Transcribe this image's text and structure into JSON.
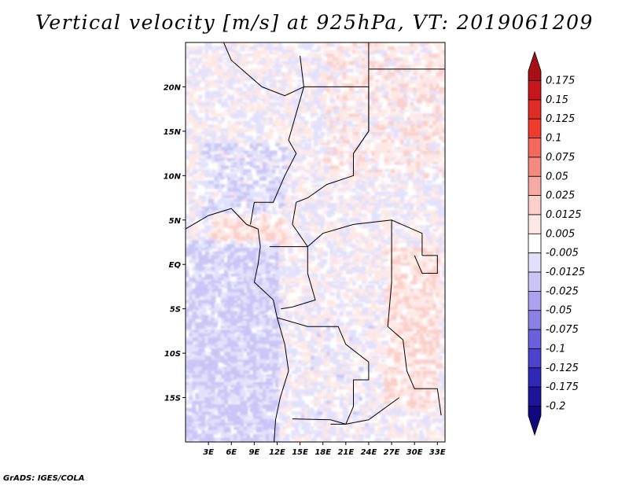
{
  "chart_data": {
    "type": "heatmap",
    "title": "Vertical velocity [m/s] at 925hPa, VT: 2019061209",
    "variable": "vertical velocity",
    "units": "m/s",
    "level": "925hPa",
    "valid_time": "2019061209",
    "x_axis": {
      "range": [
        0,
        34
      ],
      "ticks": [
        3,
        6,
        9,
        12,
        15,
        18,
        21,
        24,
        27,
        30,
        33
      ],
      "tick_labels": [
        "3E",
        "6E",
        "9E",
        "12E",
        "15E",
        "18E",
        "21E",
        "24E",
        "27E",
        "30E",
        "33E"
      ]
    },
    "y_axis": {
      "range": [
        -20,
        25
      ],
      "ticks": [
        20,
        15,
        10,
        5,
        0,
        -5,
        -10,
        -15
      ],
      "tick_labels": [
        "20N",
        "15N",
        "10N",
        "5N",
        "EQ",
        "5S",
        "10S",
        "15S"
      ]
    },
    "colorbar": {
      "levels": [
        0.175,
        0.15,
        0.125,
        0.1,
        0.075,
        0.05,
        0.025,
        0.0125,
        0.005,
        -0.005,
        -0.0125,
        -0.025,
        -0.05,
        -0.075,
        -0.1,
        -0.125,
        -0.175,
        -0.2
      ],
      "labels": [
        "0.175",
        "0.15",
        "0.125",
        "0.1",
        "0.075",
        "0.05",
        "0.025",
        "0.0125",
        "0.005",
        "-0.005",
        "-0.0125",
        "-0.025",
        "-0.05",
        "-0.075",
        "-0.1",
        "-0.125",
        "-0.175",
        "-0.2"
      ],
      "colors": [
        "#a50f15",
        "#c8161d",
        "#de2d26",
        "#ef3b2c",
        "#f26a5a",
        "#f38a80",
        "#f6aca5",
        "#fbcfca",
        "#fde8e5",
        "#ffffff",
        "#e2e1fb",
        "#c9c6f5",
        "#a9a2ee",
        "#8a80e6",
        "#6a5fdc",
        "#4d42cc",
        "#3027b3",
        "#1d1599",
        "#10087d"
      ]
    },
    "field_pattern": {
      "background": "mostly near zero (|w| < 0.005) with small-scale mixed positive and negative cells",
      "features": [
        "positive (upward) streaks near the Gulf of Guinea coast around 3N-5N, 3E-12E",
        "negative (downward) patches over the ocean west of 12E, 5S-20S",
        "positive bands along the East African rift and lakes, 27E-33E, 0-15S",
        "positive patches over the northern Sahel and Sahara, 10N-25N"
      ]
    }
  },
  "footer": "GrADS: IGES/COLA"
}
